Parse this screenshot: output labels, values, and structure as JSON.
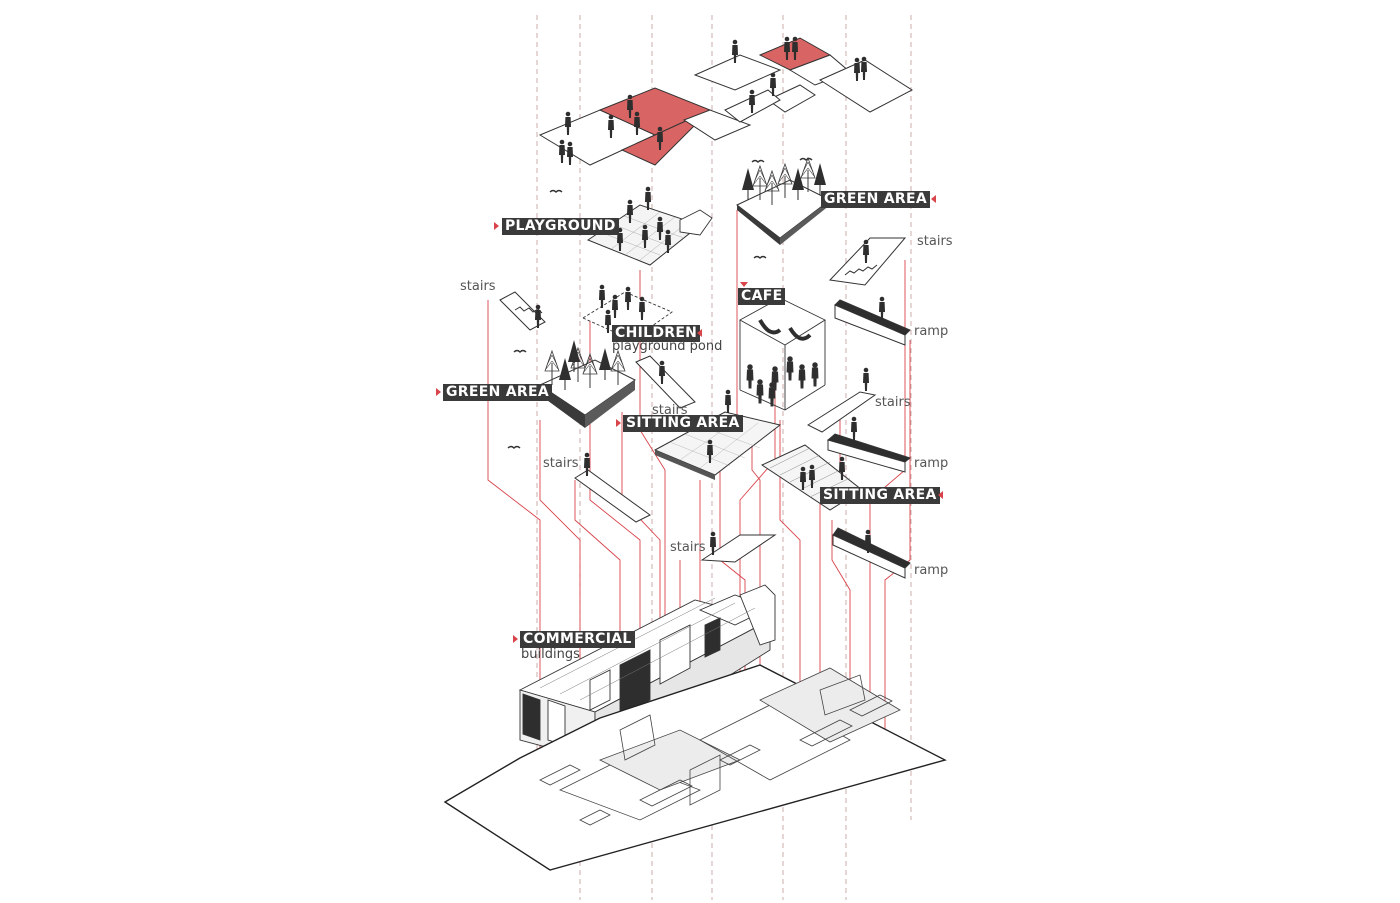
{
  "labels": {
    "playground": "PLAYGROUND",
    "green_area_top": "GREEN AREA",
    "cafe": "CAFE",
    "children": "CHILDREN",
    "children_sub": "playground pond",
    "green_area_left": "GREEN AREA",
    "sitting_area_center": "SITTING AREA",
    "sitting_area_right": "SITTING AREA",
    "commercial": "COMMERCIAL",
    "commercial_sub": "buildings",
    "stairs_right_top": "stairs",
    "ramp_right_top": "ramp",
    "stairs_left_top": "stairs",
    "stairs_center": "stairs",
    "stairs_right_mid": "stairs",
    "ramp_right_mid": "ramp",
    "stairs_left_mid": "stairs",
    "stairs_lower": "stairs",
    "ramp_right_low": "ramp"
  },
  "colors": {
    "accent": "#d9434a",
    "label_bg": "#3a3a3a",
    "line": "#333333",
    "guide": "#c9a3a3"
  }
}
